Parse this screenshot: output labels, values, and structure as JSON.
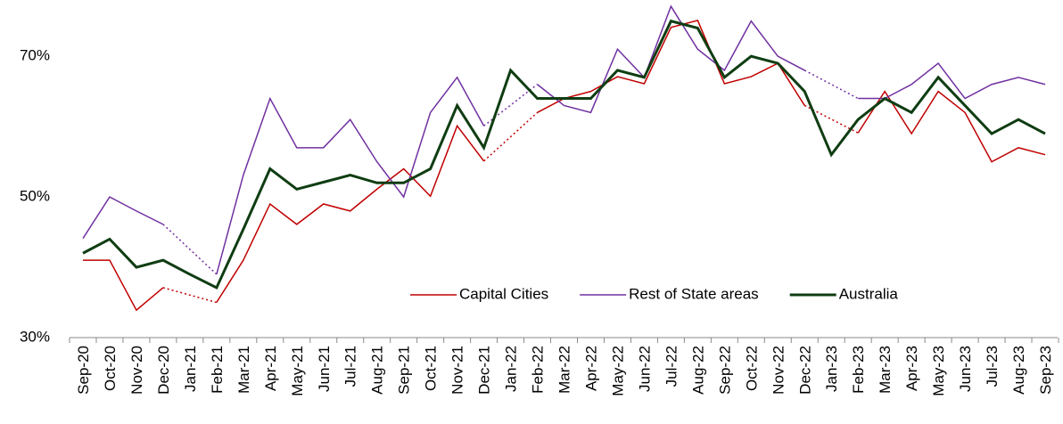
{
  "chart_data": {
    "type": "line",
    "categories": [
      "Sep-20",
      "Oct-20",
      "Nov-20",
      "Dec-20",
      "Jan-21",
      "Feb-21",
      "Mar-21",
      "Apr-21",
      "May-21",
      "Jun-21",
      "Jul-21",
      "Aug-21",
      "Sep-21",
      "Oct-21",
      "Nov-21",
      "Dec-21",
      "Jan-22",
      "Feb-22",
      "Mar-22",
      "Apr-22",
      "May-22",
      "Jun-22",
      "Jul-22",
      "Aug-22",
      "Sep-22",
      "Oct-22",
      "Nov-22",
      "Dec-22",
      "Jan-23",
      "Feb-23",
      "Mar-23",
      "Apr-23",
      "May-23",
      "Jun-23",
      "Jul-23",
      "Aug-23",
      "Sep-23"
    ],
    "series": [
      {
        "name": "Capital Cities",
        "color": "#c00000",
        "width": 1.5,
        "values": [
          41,
          41,
          33.9,
          37.1,
          null,
          35,
          41,
          49,
          46.1,
          49,
          48,
          51.1,
          54,
          50.1,
          60.1,
          55.1,
          null,
          62,
          64,
          65,
          67.1,
          66.1,
          74.1,
          75.1,
          66.1,
          67.1,
          69,
          63,
          null,
          59.1,
          65,
          59,
          65,
          62,
          55,
          57,
          56
        ]
      },
      {
        "name": "Rest of State areas",
        "color": "#7030a0",
        "width": 1.5,
        "values": [
          44.1,
          50,
          48,
          46.1,
          null,
          39,
          53.1,
          64,
          57,
          57,
          61,
          55,
          50,
          62,
          67,
          60.1,
          null,
          66,
          63,
          62,
          71,
          67,
          77.1,
          71,
          68,
          75,
          70,
          68,
          null,
          64,
          64,
          66,
          69,
          64,
          66,
          67,
          66
        ]
      },
      {
        "name": "Australia",
        "color": "#0f3d12",
        "width": 3,
        "values": [
          42,
          44,
          40,
          41,
          39,
          37.1,
          45.4,
          54,
          51.1,
          52.1,
          53.1,
          52,
          52,
          54,
          63,
          57,
          68,
          64,
          64,
          64,
          68,
          67,
          75,
          74,
          67,
          70,
          69,
          65,
          56,
          61,
          64,
          62,
          67,
          63,
          59,
          61,
          59
        ]
      }
    ],
    "gap_style": "dotted",
    "ylim": [
      30,
      78
    ],
    "yticks": [
      {
        "value": 30,
        "label": "30%"
      },
      {
        "value": 50,
        "label": "50%"
      },
      {
        "value": 70,
        "label": "70%"
      }
    ],
    "grid": false,
    "legend": "lower right"
  }
}
